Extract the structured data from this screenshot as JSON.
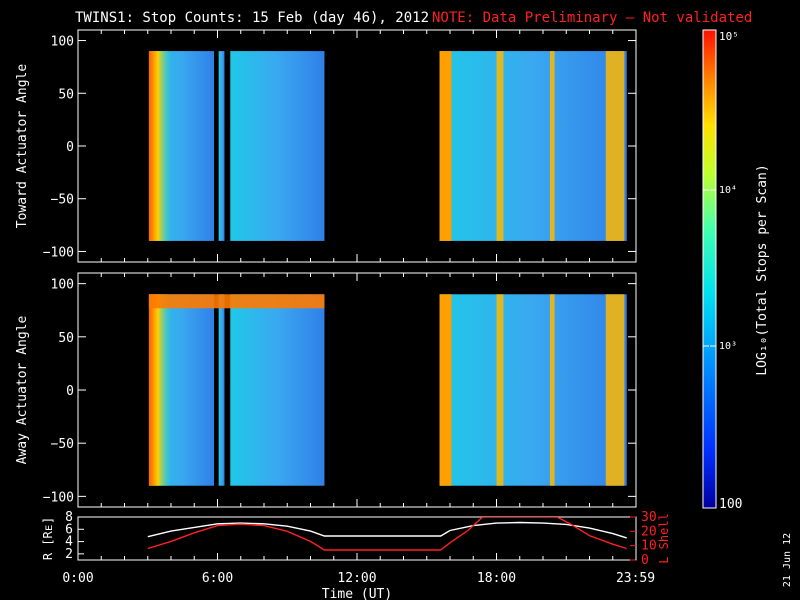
{
  "title": {
    "main": "TWINS1: Stop Counts: 15 Feb (day  46), 2012",
    "note": "NOTE: Data Preliminary – Not validated",
    "note_color": "#ff2020"
  },
  "date_stamp": "21 Jun 12",
  "colorbar": {
    "label": "LOG₁₀(Total Stops per Scan)",
    "ticks": [
      "10⁵",
      "10⁴",
      "10³",
      "100"
    ],
    "tick_values": [
      100000,
      10000,
      1000,
      100
    ],
    "range": [
      100,
      100000
    ],
    "scale": "log"
  },
  "chart_data": [
    {
      "type": "heatmap",
      "ylabel": "Toward Actuator Angle",
      "ylim": [
        -110,
        110
      ],
      "yticks": [
        "100",
        "50",
        "0",
        "−50",
        "−100"
      ],
      "ytick_values": [
        100,
        50,
        0,
        -50,
        -100
      ],
      "xlim": [
        0,
        24
      ],
      "data_intervals_hours": [
        [
          3.05,
          5.85
        ],
        [
          6.05,
          6.3
        ],
        [
          6.55,
          10.6
        ],
        [
          15.55,
          23.6
        ]
      ],
      "angle_range": [
        -90,
        90
      ],
      "high_bands_hours": [
        [
          18.0,
          18.3
        ],
        [
          20.3,
          20.5
        ],
        [
          22.7,
          23.5
        ]
      ]
    },
    {
      "type": "heatmap",
      "ylabel": "Away Actuator Angle",
      "ylim": [
        -110,
        110
      ],
      "yticks": [
        "100",
        "50",
        "0",
        "−50",
        "−100"
      ],
      "ytick_values": [
        100,
        50,
        0,
        -50,
        -100
      ],
      "xlim": [
        0,
        24
      ],
      "data_intervals_hours": [
        [
          3.05,
          5.85
        ],
        [
          6.05,
          6.3
        ],
        [
          6.55,
          10.6
        ],
        [
          15.55,
          23.6
        ]
      ],
      "angle_range": [
        -90,
        90
      ],
      "high_bands_hours": [
        [
          18.0,
          18.3
        ],
        [
          20.3,
          20.5
        ],
        [
          22.7,
          23.5
        ]
      ]
    },
    {
      "type": "line",
      "ylabel_left": "R [Rᴇ]",
      "ylabel_right": "L Shell",
      "ylim_left": [
        1,
        8
      ],
      "yticks_left": [
        "8",
        "6",
        "4",
        "2"
      ],
      "ytick_values_left": [
        8,
        6,
        4,
        2
      ],
      "ylim_right": [
        0,
        30
      ],
      "yticks_right": [
        "30",
        "20",
        "10",
        "0"
      ],
      "ytick_values_right": [
        30,
        20,
        10,
        0
      ],
      "xlabel": "Time (UT)",
      "xticks": [
        "0:00",
        "6:00",
        "12:00",
        "18:00",
        "23:59"
      ],
      "xtick_values": [
        0,
        6,
        12,
        18,
        23.98
      ],
      "series": [
        {
          "axis": "left",
          "color": "#ffffff",
          "x": [
            3,
            4,
            5,
            6,
            7,
            8,
            9,
            10,
            10.6,
            12,
            14,
            15.6,
            16,
            17,
            18,
            19,
            20,
            21,
            22,
            23,
            23.6
          ],
          "y": [
            4.8,
            5.7,
            6.3,
            6.9,
            7.0,
            6.9,
            6.5,
            5.7,
            4.9,
            4.9,
            4.9,
            4.9,
            5.8,
            6.6,
            7.0,
            7.1,
            7.0,
            6.8,
            6.2,
            5.3,
            4.6
          ]
        },
        {
          "axis": "right",
          "color": "#ff2020",
          "x": [
            3,
            4,
            5,
            6,
            7,
            8,
            9,
            10,
            10.6,
            12,
            14,
            15.6,
            16,
            16.8,
            17.4,
            20.6,
            21.2,
            22,
            23,
            23.6
          ],
          "y": [
            8,
            13,
            19,
            24,
            25,
            24,
            20,
            13,
            7,
            7,
            7,
            7,
            12,
            21,
            30,
            30,
            25,
            17,
            11,
            8
          ]
        }
      ]
    }
  ]
}
